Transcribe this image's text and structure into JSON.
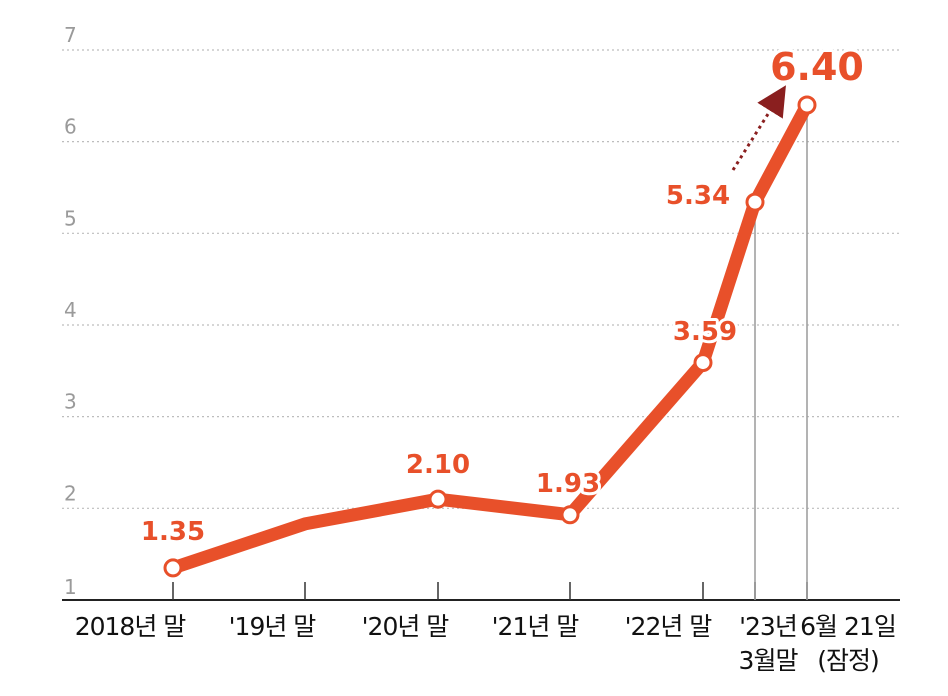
{
  "chart_data": {
    "type": "line",
    "title": "",
    "xlabel": "",
    "ylabel": "",
    "ylim": [
      1,
      7
    ],
    "yticks": [
      1,
      2,
      3,
      4,
      5,
      6,
      7
    ],
    "grid": true,
    "legend": "none",
    "line_color": "#e8502a",
    "points": [
      {
        "x": "2018년 말",
        "y": 1.35,
        "label": "1.35",
        "marker": true
      },
      {
        "x": "'19년 말",
        "y": 1.83,
        "label": "",
        "marker": false
      },
      {
        "x": "'20년 말",
        "y": 2.1,
        "label": "2.10",
        "marker": true
      },
      {
        "x": "'21년 말",
        "y": 1.93,
        "label": "1.93",
        "marker": true
      },
      {
        "x": "'22년 말",
        "y": 3.59,
        "label": "3.59",
        "marker": true
      },
      {
        "x": "'23년 3월말",
        "y": 5.34,
        "label": "5.34",
        "marker": true
      },
      {
        "x": "6월 21일 (잠정)",
        "y": 6.4,
        "label": "6.40",
        "marker": true
      }
    ]
  },
  "x_axis": {
    "labels": [
      [
        "2018년 말"
      ],
      [
        "'19년 말"
      ],
      [
        "'20년 말"
      ],
      [
        "'21년 말"
      ],
      [
        "'22년 말"
      ],
      [
        "'23년",
        "3월말"
      ],
      [
        "6월 21일",
        "(잠정)"
      ]
    ]
  }
}
